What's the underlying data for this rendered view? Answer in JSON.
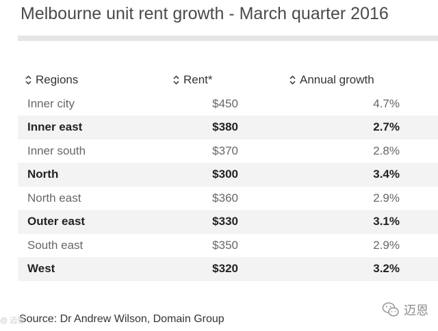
{
  "title": "Melbourne unit rent growth - March quarter 2016",
  "table": {
    "headers": {
      "region": "Regions",
      "rent": "Rent*",
      "growth": "Annual growth"
    },
    "rows": [
      {
        "region": "Inner city",
        "rent": "$450",
        "growth": "4.7%"
      },
      {
        "region": "Inner east",
        "rent": "$380",
        "growth": "2.7%"
      },
      {
        "region": "Inner south",
        "rent": "$370",
        "growth": "2.8%"
      },
      {
        "region": "North",
        "rent": "$300",
        "growth": "3.4%"
      },
      {
        "region": "North east",
        "rent": "$360",
        "growth": "2.9%"
      },
      {
        "region": "Outer east",
        "rent": "$330",
        "growth": "3.1%"
      },
      {
        "region": "South east",
        "rent": "$350",
        "growth": "2.9%"
      },
      {
        "region": "West",
        "rent": "$320",
        "growth": "3.2%"
      }
    ]
  },
  "source": "Source: Dr Andrew Wilson, Domain Group",
  "watermark": {
    "left": "@ 迈恩",
    "right": "迈恩"
  },
  "icons": {
    "sort": "sort-icon",
    "watermark_logo": "wechat-icon"
  }
}
